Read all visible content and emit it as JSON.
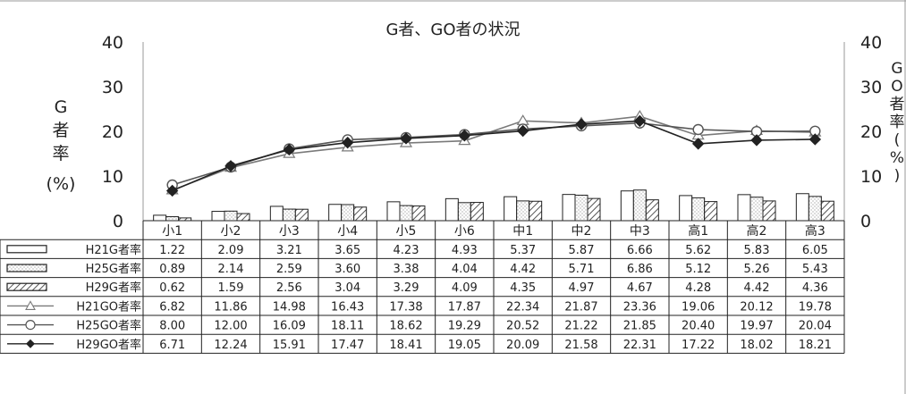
{
  "chart_data": {
    "type": "bar",
    "title": "G者、GO者の状況",
    "ylabel_left_chars": [
      "G",
      "者",
      "率"
    ],
    "ylabel_left_unit": "(%)",
    "ylabel_right_chars": [
      "G",
      "O",
      "者",
      "率",
      "(",
      "%",
      ")"
    ],
    "ylim_left": [
      0,
      40
    ],
    "ylim_right": [
      0,
      40
    ],
    "yticks_left": [
      "0",
      "10",
      "20",
      "30",
      "40"
    ],
    "yticks_right": [
      "0",
      "10",
      "20",
      "30",
      "40"
    ],
    "grid": false,
    "legend": "data-table",
    "categories": [
      "小1",
      "小2",
      "小3",
      "小4",
      "小5",
      "小6",
      "中1",
      "中2",
      "中3",
      "高1",
      "高2",
      "高3"
    ],
    "bar_series": [
      {
        "name": "H21G者率",
        "style": "white",
        "labels": [
          "1.22",
          "2.09",
          "3.21",
          "3.65",
          "4.23",
          "4.93",
          "5.37",
          "5.87",
          "6.66",
          "5.62",
          "5.83",
          "6.05"
        ],
        "values": [
          1.22,
          2.09,
          3.21,
          3.65,
          4.23,
          4.93,
          5.37,
          5.87,
          6.66,
          5.62,
          5.83,
          6.05
        ]
      },
      {
        "name": "H25G者率",
        "style": "dotted",
        "labels": [
          "0.89",
          "2.14",
          "2.59",
          "3.60",
          "3.38",
          "4.04",
          "4.42",
          "5.71",
          "6.86",
          "5.12",
          "5.26",
          "5.43"
        ],
        "values": [
          0.89,
          2.14,
          2.59,
          3.6,
          3.38,
          4.04,
          4.42,
          5.71,
          6.86,
          5.12,
          5.26,
          5.43
        ]
      },
      {
        "name": "H29G者率",
        "style": "hatched",
        "labels": [
          "0.62",
          "1.59",
          "2.56",
          "3.04",
          "3.29",
          "4.09",
          "4.35",
          "4.97",
          "4.67",
          "4.28",
          "4.42",
          "4.36"
        ],
        "values": [
          0.62,
          1.59,
          2.56,
          3.04,
          3.29,
          4.09,
          4.35,
          4.97,
          4.67,
          4.28,
          4.42,
          4.36
        ]
      }
    ],
    "line_series": [
      {
        "name": "H21GO者率",
        "marker": "triangle",
        "color": "#7a7a7a",
        "labels": [
          "6.82",
          "11.86",
          "14.98",
          "16.43",
          "17.38",
          "17.87",
          "22.34",
          "21.87",
          "23.36",
          "19.06",
          "20.12",
          "19.78"
        ],
        "values": [
          6.82,
          11.86,
          14.98,
          16.43,
          17.38,
          17.87,
          22.34,
          21.87,
          23.36,
          19.06,
          20.12,
          19.78
        ]
      },
      {
        "name": "H25GO者率",
        "marker": "circle",
        "color": "#555555",
        "labels": [
          "8.00",
          "12.00",
          "16.09",
          "18.11",
          "18.62",
          "19.29",
          "20.52",
          "21.22",
          "21.85",
          "20.40",
          "19.97",
          "20.04"
        ],
        "values": [
          8.0,
          12.0,
          16.09,
          18.11,
          18.62,
          19.29,
          20.52,
          21.22,
          21.85,
          20.4,
          19.97,
          20.04
        ]
      },
      {
        "name": "H29GO者率",
        "marker": "diamond",
        "color": "#222222",
        "labels": [
          "6.71",
          "12.24",
          "15.91",
          "17.47",
          "18.41",
          "19.05",
          "20.09",
          "21.58",
          "22.31",
          "17.22",
          "18.02",
          "18.21"
        ],
        "values": [
          6.71,
          12.24,
          15.91,
          17.47,
          18.41,
          19.05,
          20.09,
          21.58,
          22.31,
          17.22,
          18.02,
          18.21
        ]
      }
    ]
  }
}
